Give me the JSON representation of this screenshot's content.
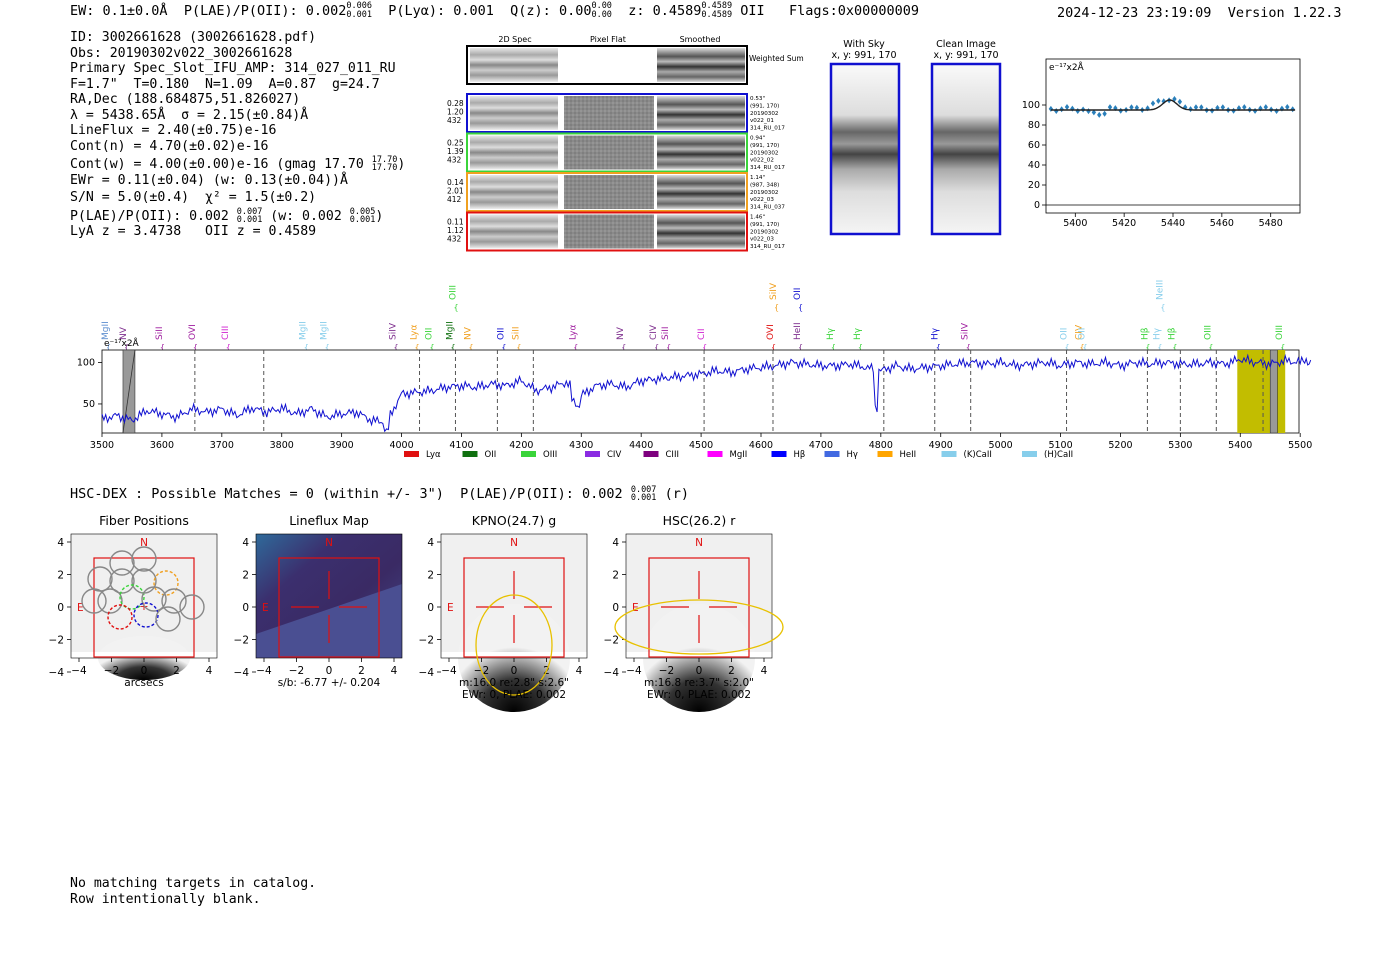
{
  "header": {
    "ew": "EW: 0.1±0.0Å",
    "plae_label": "P(LAE)/P(OII): 0.002",
    "plae_sup": "0.006",
    "plae_sub": "0.001",
    "plya": "P(Lyα): 0.001",
    "qz_label": "Q(z): 0.00",
    "qz_sup": "0.00",
    "qz_sub": "0.00",
    "z_label": "z: 0.4589",
    "z_sup": "0.4589",
    "z_sub": "0.4589",
    "z_line": "OII",
    "flags": "Flags:0x00000009",
    "timestamp": "2024-12-23 23:19:09",
    "version": "Version 1.22.3"
  },
  "info": {
    "id": "ID: 3002661628 (3002661628.pdf)",
    "obs": "Obs: 20190302v022_3002661628",
    "slot": "Primary Spec_Slot_IFU_AMP: 314_027_011_RU",
    "fiber": "F=1.7\"  T=0.180  N=1.09  A=0.87  g=24.7",
    "radec": "RA,Dec (188.684875,51.826027)",
    "lambda": "λ = 5438.65Å  σ = 2.15(±0.84)Å",
    "lineflux": "LineFlux = 2.40(±0.75)e-16",
    "contn": "Cont(n) = 4.70(±0.02)e-16",
    "contw": "Cont(w) = 4.00(±0.00)e-16 (gmag 17.70",
    "contw_sup": "17.70",
    "contw_sub": "17.70",
    "ewr": "EWr = 0.11(±0.04) (w: 0.13(±0.04))Å",
    "sn": "S/N = 5.0(±0.4)  χ² = 1.5(±0.2)",
    "plae": "P(LAE)/P(OII): 0.002",
    "plae_sup": "0.007",
    "plae_sub": "0.001",
    "plae_w": "(w: 0.002",
    "plae_w_sup": "0.005",
    "plae_w_sub": "0.001",
    "lya": "LyA z = 3.4738   OII z = 0.4589"
  },
  "cutouts": {
    "col_headers": [
      "2D Spec",
      "Pixel Flat",
      "Smoothed"
    ],
    "weighted_sum": "Weighted Sum",
    "rows": [
      {
        "stats": [
          "0.28",
          "1.20",
          "432"
        ],
        "meta": [
          "0.53\"",
          "(991, 170)",
          "20190302",
          "v022_01",
          "314_RU_017"
        ],
        "color": "#1010d0"
      },
      {
        "stats": [
          "0.25",
          "1.39",
          "432"
        ],
        "meta": [
          "0.94\"",
          "(991, 170)",
          "20190302",
          "v022_02",
          "314_RU_017"
        ],
        "color": "#3ad43a"
      },
      {
        "stats": [
          "0.14",
          "2.01",
          "412"
        ],
        "meta": [
          "1.14\"",
          "(987, 348)",
          "20190302",
          "v022_03",
          "314_RU_037"
        ],
        "color": "#f0a020"
      },
      {
        "stats": [
          "0.11",
          "1.12",
          "432"
        ],
        "meta": [
          "1.46\"",
          "(991, 170)",
          "20190302",
          "v022_03",
          "314_RU_017"
        ],
        "color": "#e01010"
      }
    ],
    "with_sky": "With Sky",
    "with_sky_xy": "x, y: 991, 170",
    "clean": "Clean Image",
    "clean_xy": "x, y: 991, 170"
  },
  "zoom_chart": {
    "unit": "e⁻¹⁷x2Å",
    "x_ticks": [
      "5400",
      "5420",
      "5440",
      "5460",
      "5480"
    ],
    "y_ticks": [
      "100",
      "80",
      "60",
      "40",
      "20",
      "0"
    ]
  },
  "chart_data": {
    "type": "line",
    "title": "",
    "unit_label": "e⁻¹⁷x2Å",
    "xlim": [
      3500,
      5520
    ],
    "ylim": [
      15,
      115
    ],
    "x_ticks": [
      "3500",
      "3600",
      "3700",
      "3800",
      "3900",
      "4000",
      "4100",
      "4200",
      "4300",
      "4400",
      "4500",
      "4600",
      "4700",
      "4800",
      "4900",
      "5000",
      "5100",
      "5200",
      "5300",
      "5400",
      "5500"
    ],
    "y_ticks": [
      "100",
      "50"
    ],
    "x": [
      3500,
      3525,
      3550,
      3575,
      3600,
      3625,
      3650,
      3675,
      3700,
      3725,
      3750,
      3775,
      3800,
      3825,
      3850,
      3875,
      3900,
      3925,
      3950,
      3975,
      4000,
      4025,
      4050,
      4075,
      4100,
      4125,
      4150,
      4175,
      4200,
      4225,
      4250,
      4275,
      4300,
      4325,
      4350,
      4375,
      4400,
      4425,
      4450,
      4475,
      4500,
      4525,
      4550,
      4575,
      4600,
      4625,
      4650,
      4675,
      4700,
      4725,
      4750,
      4775,
      4800,
      4825,
      4850,
      4875,
      4900,
      4925,
      4950,
      4975,
      5000,
      5025,
      5050,
      5075,
      5100,
      5125,
      5150,
      5175,
      5200,
      5225,
      5250,
      5275,
      5300,
      5325,
      5350,
      5375,
      5400,
      5425,
      5450,
      5475,
      5500,
      5520
    ],
    "y": [
      32,
      36,
      30,
      42,
      38,
      34,
      44,
      40,
      44,
      36,
      45,
      40,
      45,
      38,
      44,
      34,
      38,
      40,
      30,
      28,
      62,
      64,
      66,
      70,
      72,
      70,
      74,
      72,
      78,
      66,
      70,
      76,
      60,
      72,
      74,
      70,
      78,
      80,
      82,
      84,
      86,
      90,
      88,
      92,
      94,
      96,
      100,
      98,
      96,
      96,
      98,
      94,
      90,
      96,
      92,
      94,
      96,
      98,
      100,
      98,
      100,
      96,
      98,
      100,
      96,
      100,
      98,
      100,
      96,
      100,
      98,
      100,
      98,
      98,
      100,
      98,
      104,
      100,
      98,
      102,
      100,
      102
    ],
    "line_markers": [
      {
        "name": "MgII",
        "wave": 3510,
        "color": "#5f8fd0"
      },
      {
        "name": "NV",
        "wave": 3540,
        "color": "#7e2f8e"
      },
      {
        "name": "SiII",
        "wave": 3600,
        "color": "#a020a0"
      },
      {
        "name": "OVI",
        "wave": 3655,
        "color": "#a020a0"
      },
      {
        "name": "CIII",
        "wave": 3710,
        "color": "#d020d0"
      },
      {
        "name": "MgII",
        "wave": 3840,
        "color": "#87ceeb"
      },
      {
        "name": "MgII",
        "wave": 3875,
        "color": "#87ceeb"
      },
      {
        "name": "SiIV",
        "wave": 3990,
        "color": "#7e2f8e"
      },
      {
        "name": "Lyα",
        "wave": 4025,
        "color": "#f0a020"
      },
      {
        "name": "OII",
        "wave": 4050,
        "color": "#3ad43a"
      },
      {
        "name": "MgII",
        "wave": 4085,
        "color": "#107010"
      },
      {
        "name": "OIII",
        "wave": 4090,
        "color": "#3ad43a"
      },
      {
        "name": "NV",
        "wave": 4115,
        "color": "#f0a020"
      },
      {
        "name": "OII",
        "wave": 4170,
        "color": "#1010d0"
      },
      {
        "name": "SiII",
        "wave": 4195,
        "color": "#f0a020"
      },
      {
        "name": "Lyα",
        "wave": 4290,
        "color": "#a020a0"
      },
      {
        "name": "NV",
        "wave": 4370,
        "color": "#7e2f8e"
      },
      {
        "name": "CIV",
        "wave": 4425,
        "color": "#7e2f8e"
      },
      {
        "name": "SiII",
        "wave": 4445,
        "color": "#a020a0"
      },
      {
        "name": "CII",
        "wave": 4505,
        "color": "#d020d0"
      },
      {
        "name": "OVI",
        "wave": 4620,
        "color": "#e01010"
      },
      {
        "name": "SiIV",
        "wave": 4625,
        "color": "#f0a020"
      },
      {
        "name": "OII",
        "wave": 4665,
        "color": "#1010d0"
      },
      {
        "name": "HeII",
        "wave": 4665,
        "color": "#7e2f8e"
      },
      {
        "name": "Hγ",
        "wave": 4720,
        "color": "#3ad43a"
      },
      {
        "name": "Hγ",
        "wave": 4765,
        "color": "#3ad43a"
      },
      {
        "name": "Hγ",
        "wave": 4895,
        "color": "#1010d0"
      },
      {
        "name": "SiIV",
        "wave": 4945,
        "color": "#a020a0"
      },
      {
        "name": "OII",
        "wave": 5110,
        "color": "#87ceeb"
      },
      {
        "name": "CIV",
        "wave": 5135,
        "color": "#f0a020"
      },
      {
        "name": "OII",
        "wave": 5140,
        "color": "#87ceeb"
      },
      {
        "name": "Hβ",
        "wave": 5245,
        "color": "#3ad43a"
      },
      {
        "name": "Hγ",
        "wave": 5265,
        "color": "#87ceeb"
      },
      {
        "name": "NeIII",
        "wave": 5270,
        "color": "#87ceeb"
      },
      {
        "name": "Hβ",
        "wave": 5290,
        "color": "#3ad43a"
      },
      {
        "name": "OIII",
        "wave": 5350,
        "color": "#3ad43a"
      },
      {
        "name": "OIII",
        "wave": 5470,
        "color": "#3ad43a"
      }
    ],
    "legend": [
      {
        "label": "Lyα",
        "color": "#e01010"
      },
      {
        "label": "OII",
        "color": "#107010"
      },
      {
        "label": "OIII",
        "color": "#3ad43a"
      },
      {
        "label": "CIV",
        "color": "#8a2be2"
      },
      {
        "label": "CIII",
        "color": "#7e007e"
      },
      {
        "label": "MgII",
        "color": "#ff00ff"
      },
      {
        "label": "Hβ",
        "color": "#0000ff"
      },
      {
        "label": "Hγ",
        "color": "#4169e1"
      },
      {
        "label": "HeII",
        "color": "#ffa500"
      },
      {
        "label": "(K)CaII",
        "color": "#87ceeb"
      },
      {
        "label": "(H)CaII",
        "color": "#87ceeb"
      }
    ]
  },
  "hsc": {
    "line": "HSC-DEX : Possible Matches = 0 (within +/- 3\")  P(LAE)/P(OII): 0.002",
    "sup": "0.007",
    "sub": "0.001",
    "band": "(r)"
  },
  "panels": [
    {
      "title": "Fiber Positions",
      "caption1": "arcsecs",
      "caption2": "",
      "caption3": ""
    },
    {
      "title": "Lineflux Map",
      "caption1": "s/b: -6.77 +/- 0.204",
      "caption2": "",
      "caption3": ""
    },
    {
      "title": "KPNO(24.7) g",
      "caption1": "m:16.0  re:2.8\"  s:2.6\"",
      "caption2": "EWr: 0, PLAE: 0.002",
      "caption3": ""
    },
    {
      "title": "HSC(26.2) r",
      "caption1": "m:16.8  re:3.7\"  s:2.0\"",
      "caption2": "EWr: 0, PLAE: 0.002",
      "caption3": ""
    }
  ],
  "panel_ticks": [
    "4",
    "2",
    "0",
    "−2",
    "−4"
  ],
  "panel_xticks": [
    "−4",
    "−2",
    "0",
    "2",
    "4"
  ],
  "compass": {
    "n": "N",
    "e": "E"
  },
  "footer": {
    "line1": "No matching targets in catalog.",
    "line2": "Row intentionally blank."
  }
}
